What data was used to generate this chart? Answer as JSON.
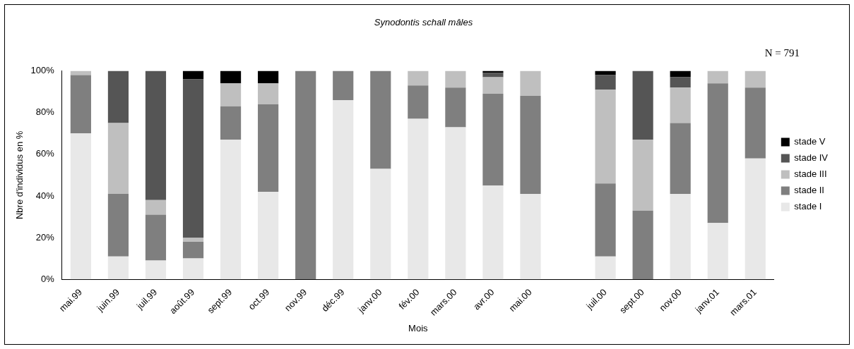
{
  "chart_data": {
    "type": "bar",
    "stacked": true,
    "title": "Synodontis schall mâles",
    "xlabel": "Mois",
    "ylabel": "Nbre d'individus en %",
    "categories": [
      "mai.99",
      "juin.99",
      "juil.99",
      "août.99",
      "sept.99",
      "oct.99",
      "nov.99",
      "déc.99",
      "janv.00",
      "fév.00",
      "mars.00",
      "avr.00",
      "mai.00",
      null,
      "juil.00",
      "sept.00",
      "nov.00",
      "janv.01",
      "mars.01"
    ],
    "series": [
      {
        "name": "stade I",
        "color": "#e8e8e8",
        "values": [
          70,
          11,
          9,
          10,
          67,
          42,
          0,
          86,
          53,
          77,
          73,
          45,
          41,
          null,
          11,
          0,
          41,
          27,
          58
        ]
      },
      {
        "name": "stade II",
        "color": "#7f7f7f",
        "values": [
          28,
          30,
          22,
          8,
          16,
          42,
          100,
          14,
          47,
          16,
          19,
          44,
          47,
          null,
          35,
          33,
          34,
          67,
          34
        ]
      },
      {
        "name": "stade III",
        "color": "#bfbfbf",
        "values": [
          2,
          34,
          7,
          2,
          11,
          10,
          0,
          0,
          0,
          7,
          8,
          8,
          12,
          null,
          45,
          34,
          17,
          6,
          8
        ]
      },
      {
        "name": "stade IV",
        "color": "#555555",
        "values": [
          0,
          25,
          62,
          76,
          0,
          0,
          0,
          0,
          0,
          0,
          0,
          2,
          0,
          null,
          7,
          33,
          5,
          0,
          0
        ]
      },
      {
        "name": "stade V",
        "color": "#000000",
        "values": [
          0,
          0,
          0,
          4,
          6,
          6,
          0,
          0,
          0,
          0,
          0,
          1,
          0,
          null,
          2,
          0,
          3,
          0,
          0
        ]
      }
    ],
    "ylim": [
      0,
      100
    ],
    "yticks": [
      {
        "value": 0,
        "label": "0%"
      },
      {
        "value": 20,
        "label": "20%"
      },
      {
        "value": 40,
        "label": "40%"
      },
      {
        "value": 60,
        "label": "60%"
      },
      {
        "value": 80,
        "label": "80%"
      },
      {
        "value": 100,
        "label": "100%"
      }
    ],
    "grid": false,
    "legend": "right",
    "annotations": [
      "N = 791"
    ]
  }
}
